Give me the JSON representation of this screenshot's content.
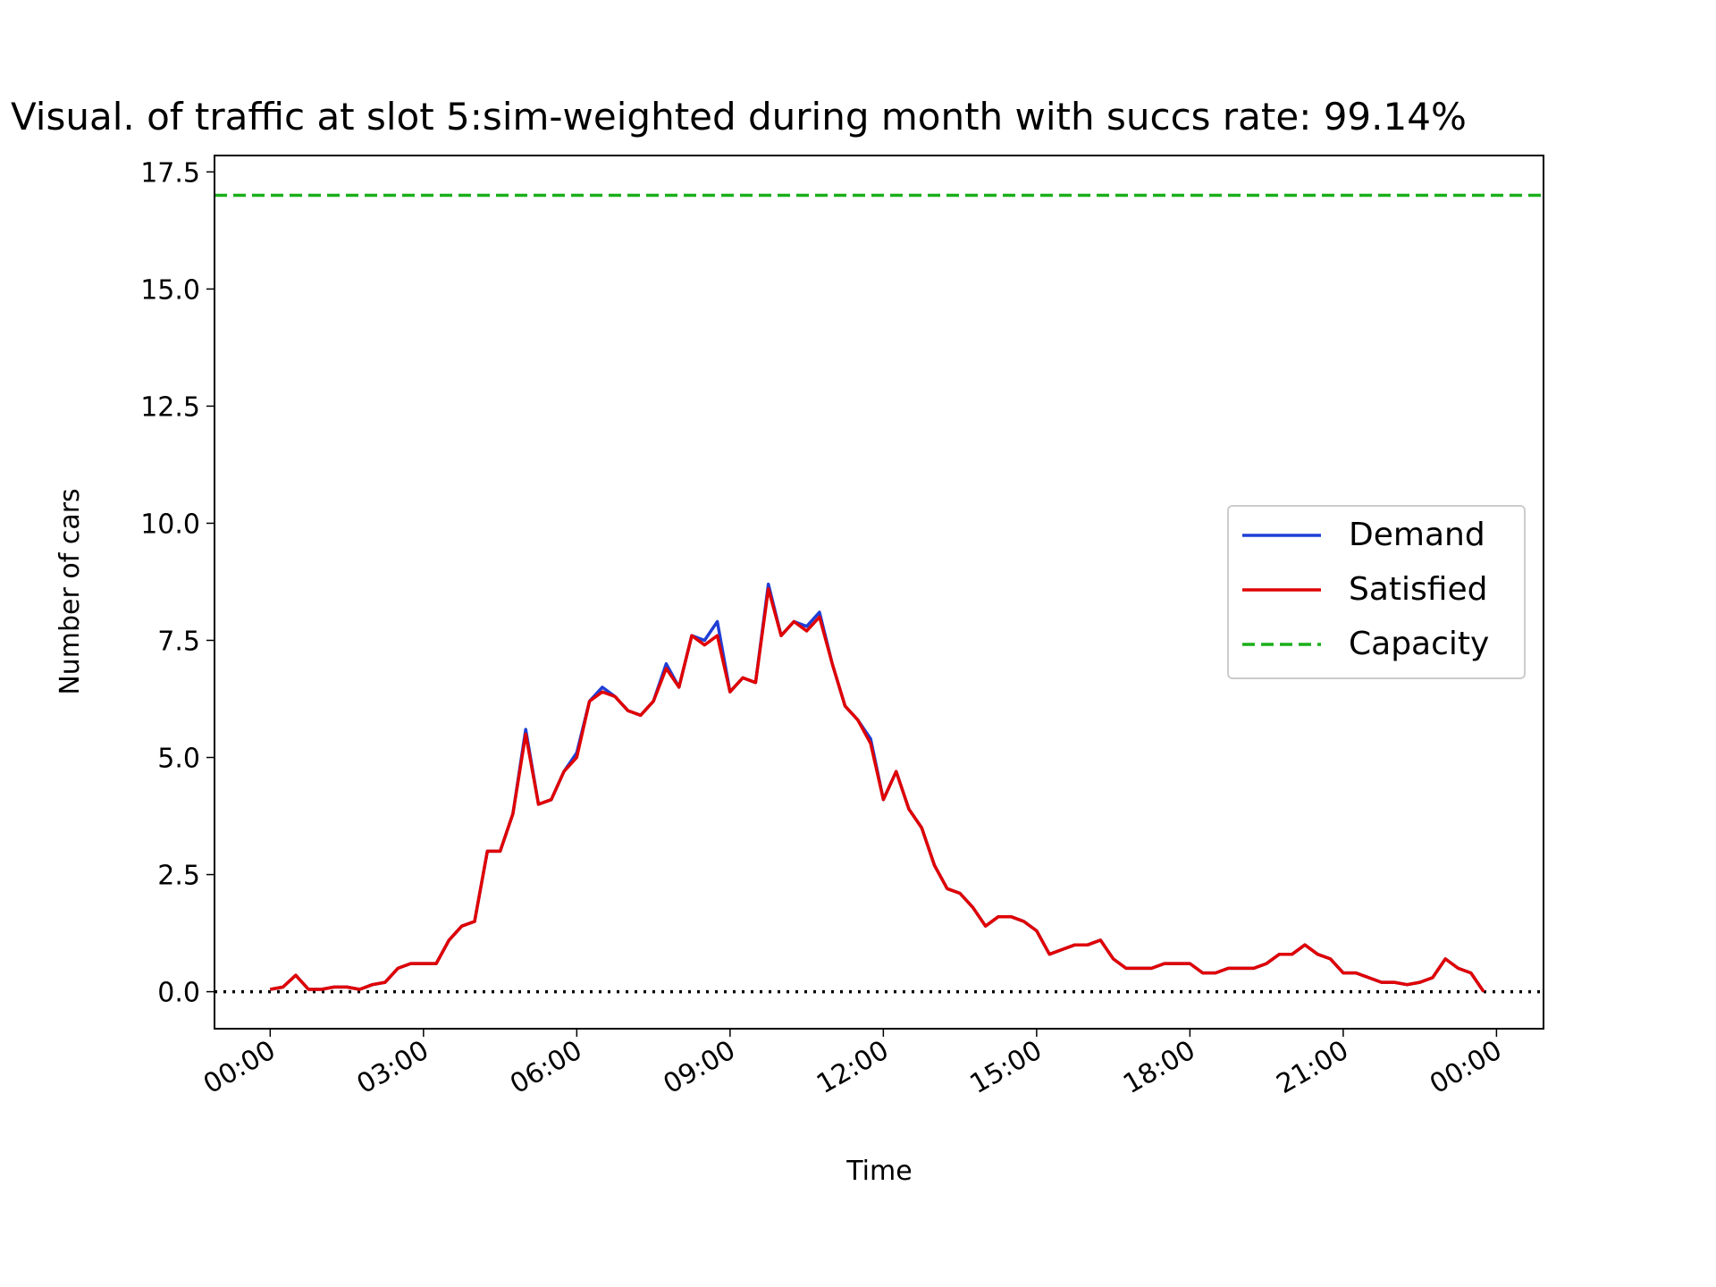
{
  "chart_data": {
    "type": "line",
    "title": "Visual. of traffic at slot 5:sim-weighted during month with succs rate: 99.14%",
    "x_label": "Time",
    "y_label": "Number of cars",
    "x": [
      0,
      0.25,
      0.5,
      0.75,
      1,
      1.25,
      1.5,
      1.75,
      2,
      2.25,
      2.5,
      2.75,
      3,
      3.25,
      3.5,
      3.75,
      4,
      4.25,
      4.5,
      4.75,
      5,
      5.25,
      5.5,
      5.75,
      6,
      6.25,
      6.5,
      6.75,
      7,
      7.25,
      7.5,
      7.75,
      8,
      8.25,
      8.5,
      8.75,
      9,
      9.25,
      9.5,
      9.75,
      10,
      10.25,
      10.5,
      10.75,
      11,
      11.25,
      11.5,
      11.75,
      12,
      12.25,
      12.5,
      12.75,
      13,
      13.25,
      13.5,
      13.75,
      14,
      14.25,
      14.5,
      14.75,
      15,
      15.25,
      15.5,
      15.75,
      16,
      16.25,
      16.5,
      16.75,
      17,
      17.25,
      17.5,
      17.75,
      18,
      18.25,
      18.5,
      18.75,
      19,
      19.25,
      19.5,
      19.75,
      20,
      20.25,
      20.5,
      20.75,
      21,
      21.25,
      21.5,
      21.75,
      22,
      22.25,
      22.5,
      22.75,
      23,
      23.25,
      23.5,
      23.75
    ],
    "series": [
      {
        "name": "Demand",
        "color": "#1f3fd6",
        "values": [
          0.05,
          0.1,
          0.35,
          0.05,
          0.05,
          0.1,
          0.1,
          0.05,
          0.15,
          0.2,
          0.5,
          0.6,
          0.6,
          0.6,
          1.1,
          1.4,
          1.5,
          3.0,
          3.0,
          3.8,
          5.6,
          4.0,
          4.1,
          4.7,
          5.1,
          6.2,
          6.5,
          6.3,
          6.0,
          5.9,
          6.2,
          7.0,
          6.5,
          7.6,
          7.5,
          7.9,
          6.4,
          6.7,
          6.6,
          8.7,
          7.6,
          7.9,
          7.8,
          8.1,
          7.0,
          6.1,
          5.8,
          5.4,
          4.1,
          4.7,
          3.9,
          3.5,
          2.7,
          2.2,
          2.1,
          1.8,
          1.4,
          1.6,
          1.6,
          1.5,
          1.3,
          0.8,
          0.9,
          1.0,
          1.0,
          1.1,
          0.7,
          0.5,
          0.5,
          0.5,
          0.6,
          0.6,
          0.6,
          0.4,
          0.4,
          0.5,
          0.5,
          0.5,
          0.6,
          0.8,
          0.8,
          1.0,
          0.8,
          0.7,
          0.4,
          0.4,
          0.3,
          0.2,
          0.2,
          0.15,
          0.2,
          0.3,
          0.7,
          0.5,
          0.4,
          0.0
        ]
      },
      {
        "name": "Satisfied",
        "color": "#e00000",
        "values": [
          0.05,
          0.1,
          0.35,
          0.05,
          0.05,
          0.1,
          0.1,
          0.05,
          0.15,
          0.2,
          0.5,
          0.6,
          0.6,
          0.6,
          1.1,
          1.4,
          1.5,
          3.0,
          3.0,
          3.8,
          5.5,
          4.0,
          4.1,
          4.7,
          5.0,
          6.2,
          6.4,
          6.3,
          6.0,
          5.9,
          6.2,
          6.9,
          6.5,
          7.6,
          7.4,
          7.6,
          6.4,
          6.7,
          6.6,
          8.6,
          7.6,
          7.9,
          7.7,
          8.0,
          7.0,
          6.1,
          5.8,
          5.3,
          4.1,
          4.7,
          3.9,
          3.5,
          2.7,
          2.2,
          2.1,
          1.8,
          1.4,
          1.6,
          1.6,
          1.5,
          1.3,
          0.8,
          0.9,
          1.0,
          1.0,
          1.1,
          0.7,
          0.5,
          0.5,
          0.5,
          0.6,
          0.6,
          0.6,
          0.4,
          0.4,
          0.5,
          0.5,
          0.5,
          0.6,
          0.8,
          0.8,
          1.0,
          0.8,
          0.7,
          0.4,
          0.4,
          0.3,
          0.2,
          0.2,
          0.15,
          0.2,
          0.3,
          0.7,
          0.5,
          0.4,
          0.0
        ]
      }
    ],
    "capacity": {
      "name": "Capacity",
      "color": "#1aaf1a",
      "value": 17
    },
    "zero_line": {
      "color": "#000000",
      "value": 0
    },
    "xlim": [
      -1.09,
      24.92
    ],
    "xticks": [
      {
        "value": 0,
        "label": "00:00"
      },
      {
        "value": 3,
        "label": "03:00"
      },
      {
        "value": 6,
        "label": "06:00"
      },
      {
        "value": 9,
        "label": "09:00"
      },
      {
        "value": 12,
        "label": "12:00"
      },
      {
        "value": 15,
        "label": "15:00"
      },
      {
        "value": 18,
        "label": "18:00"
      },
      {
        "value": 21,
        "label": "21:00"
      },
      {
        "value": 24,
        "label": "00:00"
      }
    ],
    "ylim": [
      -0.79,
      17.85
    ],
    "yticks": [
      {
        "value": 0,
        "label": "0.0"
      },
      2.5,
      {
        "value": 5,
        "label": "5.0"
      },
      7.5,
      {
        "value": 10,
        "label": "10.0"
      },
      12.5,
      {
        "value": 15,
        "label": "15.0"
      },
      17.5
    ],
    "legend": "center right"
  }
}
